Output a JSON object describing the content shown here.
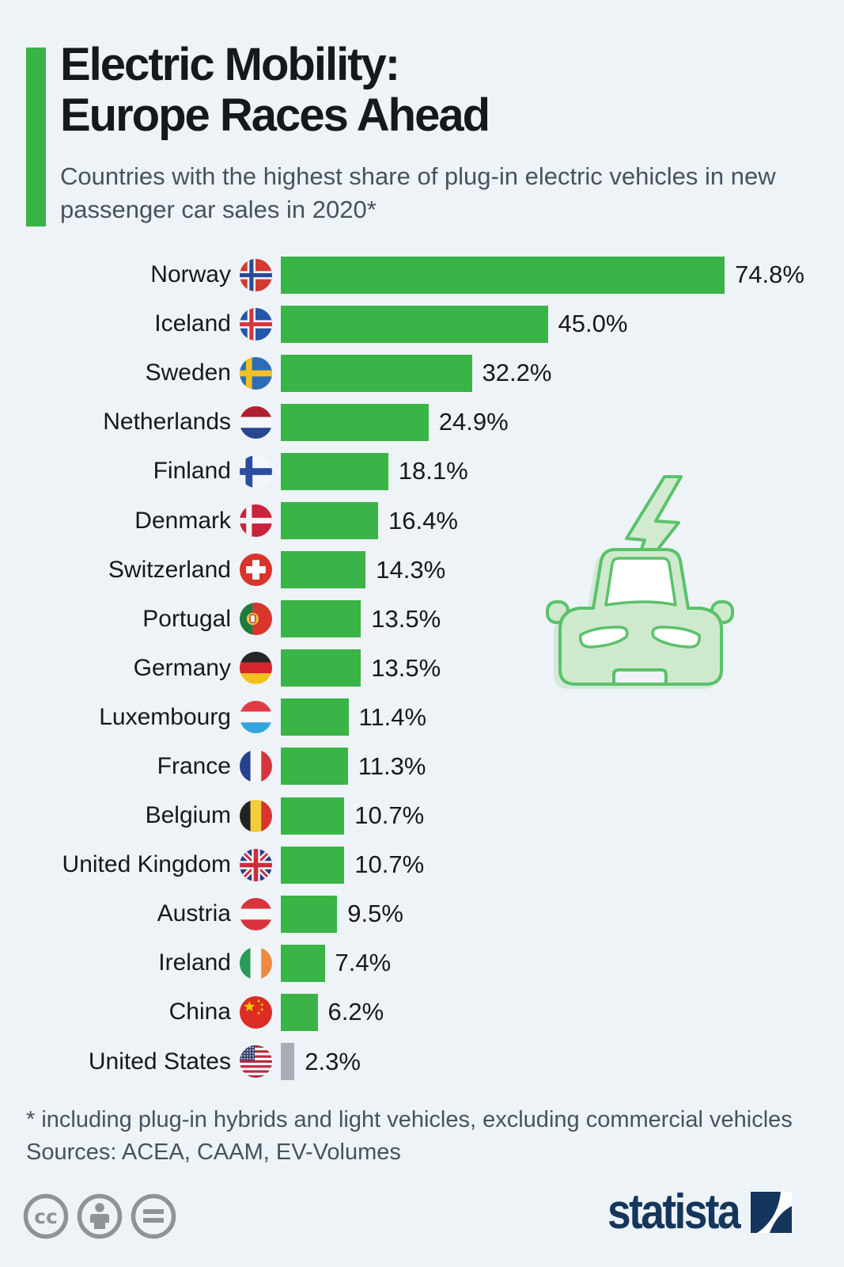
{
  "header": {
    "title_line1": "Electric Mobility:",
    "title_line2": "Europe Races Ahead",
    "subtitle": "Countries with the highest share of plug-in electric vehicles in new passenger car sales in 2020*"
  },
  "chart_data": {
    "type": "bar",
    "orientation": "horizontal",
    "title": "Share of plug-in electric vehicles in new passenger car sales in 2020",
    "unit": "percent",
    "xlim": [
      0,
      80
    ],
    "grid": false,
    "legend": "none",
    "categories": [
      "Norway",
      "Iceland",
      "Sweden",
      "Netherlands",
      "Finland",
      "Denmark",
      "Switzerland",
      "Portugal",
      "Germany",
      "Luxembourg",
      "France",
      "Belgium",
      "United Kingdom",
      "Austria",
      "Ireland",
      "China",
      "United States"
    ],
    "values": [
      74.8,
      45.0,
      32.2,
      24.9,
      18.1,
      16.4,
      14.3,
      13.5,
      13.5,
      11.4,
      11.3,
      10.7,
      10.7,
      9.5,
      7.4,
      6.2,
      2.3
    ],
    "value_labels": [
      "74.8%",
      "45.0%",
      "32.2%",
      "24.9%",
      "18.1%",
      "16.4%",
      "14.3%",
      "13.5%",
      "13.5%",
      "11.4%",
      "11.3%",
      "10.7%",
      "10.7%",
      "9.5%",
      "7.4%",
      "6.2%",
      "2.3%"
    ],
    "flags": [
      "norway",
      "iceland",
      "sweden",
      "netherlands",
      "finland",
      "denmark",
      "switzerland",
      "portugal",
      "germany",
      "luxembourg",
      "france",
      "belgium",
      "united-kingdom",
      "austria",
      "ireland",
      "china",
      "united-states"
    ],
    "muted_categories": [
      "United States"
    ]
  },
  "footnote": {
    "line1": "* including plug-in hybrids and light vehicles, excluding commercial vehicles",
    "line2": "Sources: ACEA, CAAM, EV-Volumes"
  },
  "footer": {
    "license_icons": [
      "cc-icon",
      "attribution-person-icon",
      "equals-icon"
    ],
    "brand": "statista"
  },
  "decorations": {
    "car_icon": "electric-car-icon",
    "bolt_icon": "lightning-bolt-icon"
  },
  "colors": {
    "background": "#eef3f8",
    "accent_green": "#3ab447",
    "muted_bar": "#a8aeb5",
    "title_text": "#15181c",
    "body_text": "#47525e",
    "brand_navy": "#15365c",
    "icon_gray": "#8f9398",
    "car_fill": "#cfe9cd",
    "car_stroke": "#5ac269"
  }
}
